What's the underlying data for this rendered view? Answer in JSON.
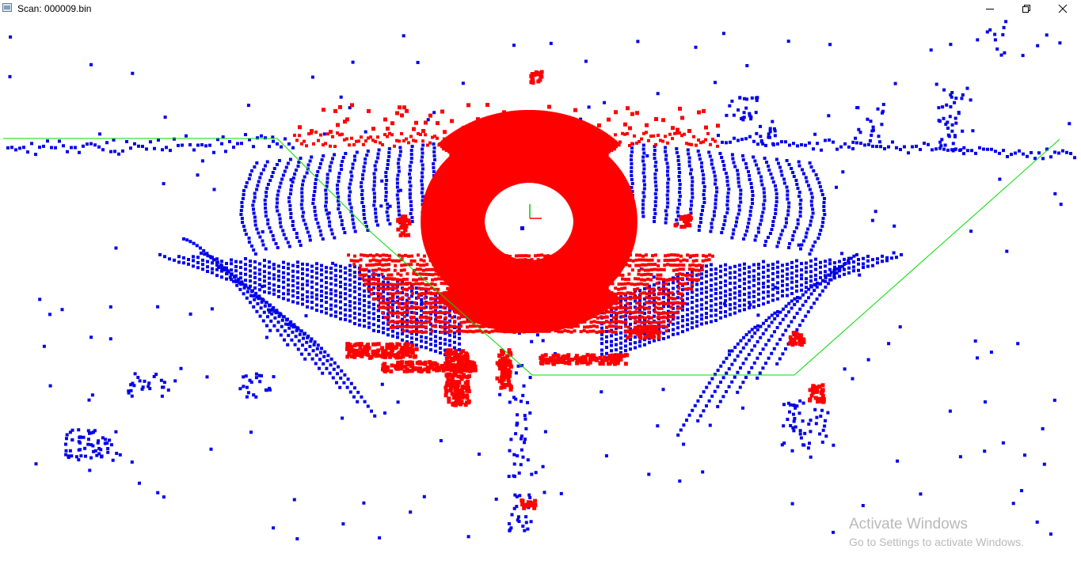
{
  "window": {
    "title": "Scan: 000009.bin",
    "controls": {
      "minimize": "minimize-icon",
      "maximize": "restore-icon",
      "close": "close-icon"
    }
  },
  "viewer": {
    "colors": {
      "ground_points": "#ff0000",
      "obstacle_points": "#0000ee",
      "boundary_line": "#00dd00",
      "axis_x": "#ff0000",
      "axis_y": "#00cc00",
      "background": "#ffffff"
    }
  },
  "watermark": {
    "title": "Activate Windows",
    "subtitle": "Go to Settings to activate Windows."
  }
}
